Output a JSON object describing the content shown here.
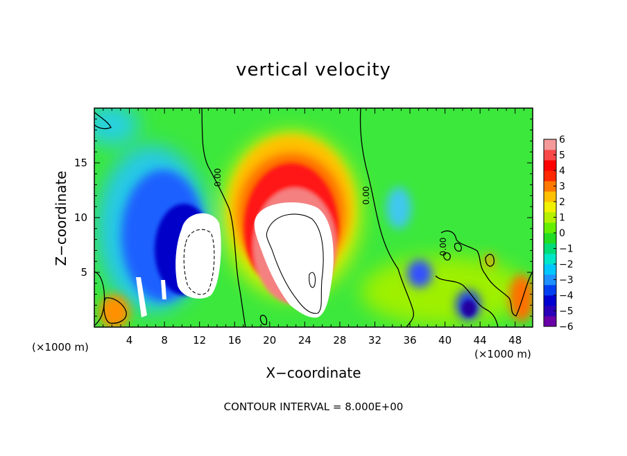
{
  "chart_data": {
    "type": "heatmap",
    "title": "vertical velocity",
    "xlabel": "X−coordinate",
    "ylabel": "Z−coordinate",
    "x_unit_left": "(×1000 m)",
    "x_unit_right": "(×1000 m)",
    "footer": "CONTOUR INTERVAL = 8.000E+00",
    "xlim": [
      0,
      50
    ],
    "ylim": [
      0,
      20
    ],
    "x_ticks": [
      4,
      8,
      12,
      16,
      20,
      24,
      28,
      32,
      36,
      40,
      44,
      48
    ],
    "y_ticks": [
      5,
      10,
      15
    ],
    "contour_labels": [
      "0.00",
      "0.00",
      "0.00"
    ],
    "colorbar": {
      "ticks": [
        "6",
        "5",
        "4",
        "3",
        "2",
        "1",
        "0",
        "−1",
        "−2",
        "−3",
        "−4",
        "−5",
        "−6"
      ],
      "range": [
        -6,
        6
      ],
      "colors": [
        "#6a00a8",
        "#2a00b8",
        "#0000d0",
        "#0040f0",
        "#1e90ff",
        "#00c8ff",
        "#00e6c8",
        "#00dc78",
        "#22dd22",
        "#66ee00",
        "#b4f000",
        "#f0f000",
        "#ffc000",
        "#ff7800",
        "#ff2800",
        "#ff0000",
        "#f84848",
        "#f49a9a"
      ]
    },
    "features": [
      {
        "type": "updraft",
        "x": 23,
        "z": 9.5,
        "max_exceeds": 6
      },
      {
        "type": "downdraft",
        "x": 11.5,
        "z": 6.5,
        "min_exceeds": -6
      },
      {
        "type": "downdraft",
        "x": 7,
        "z": 8,
        "value": -5
      },
      {
        "type": "downdraft",
        "x": 36,
        "z": 5,
        "value": -5
      }
    ]
  }
}
